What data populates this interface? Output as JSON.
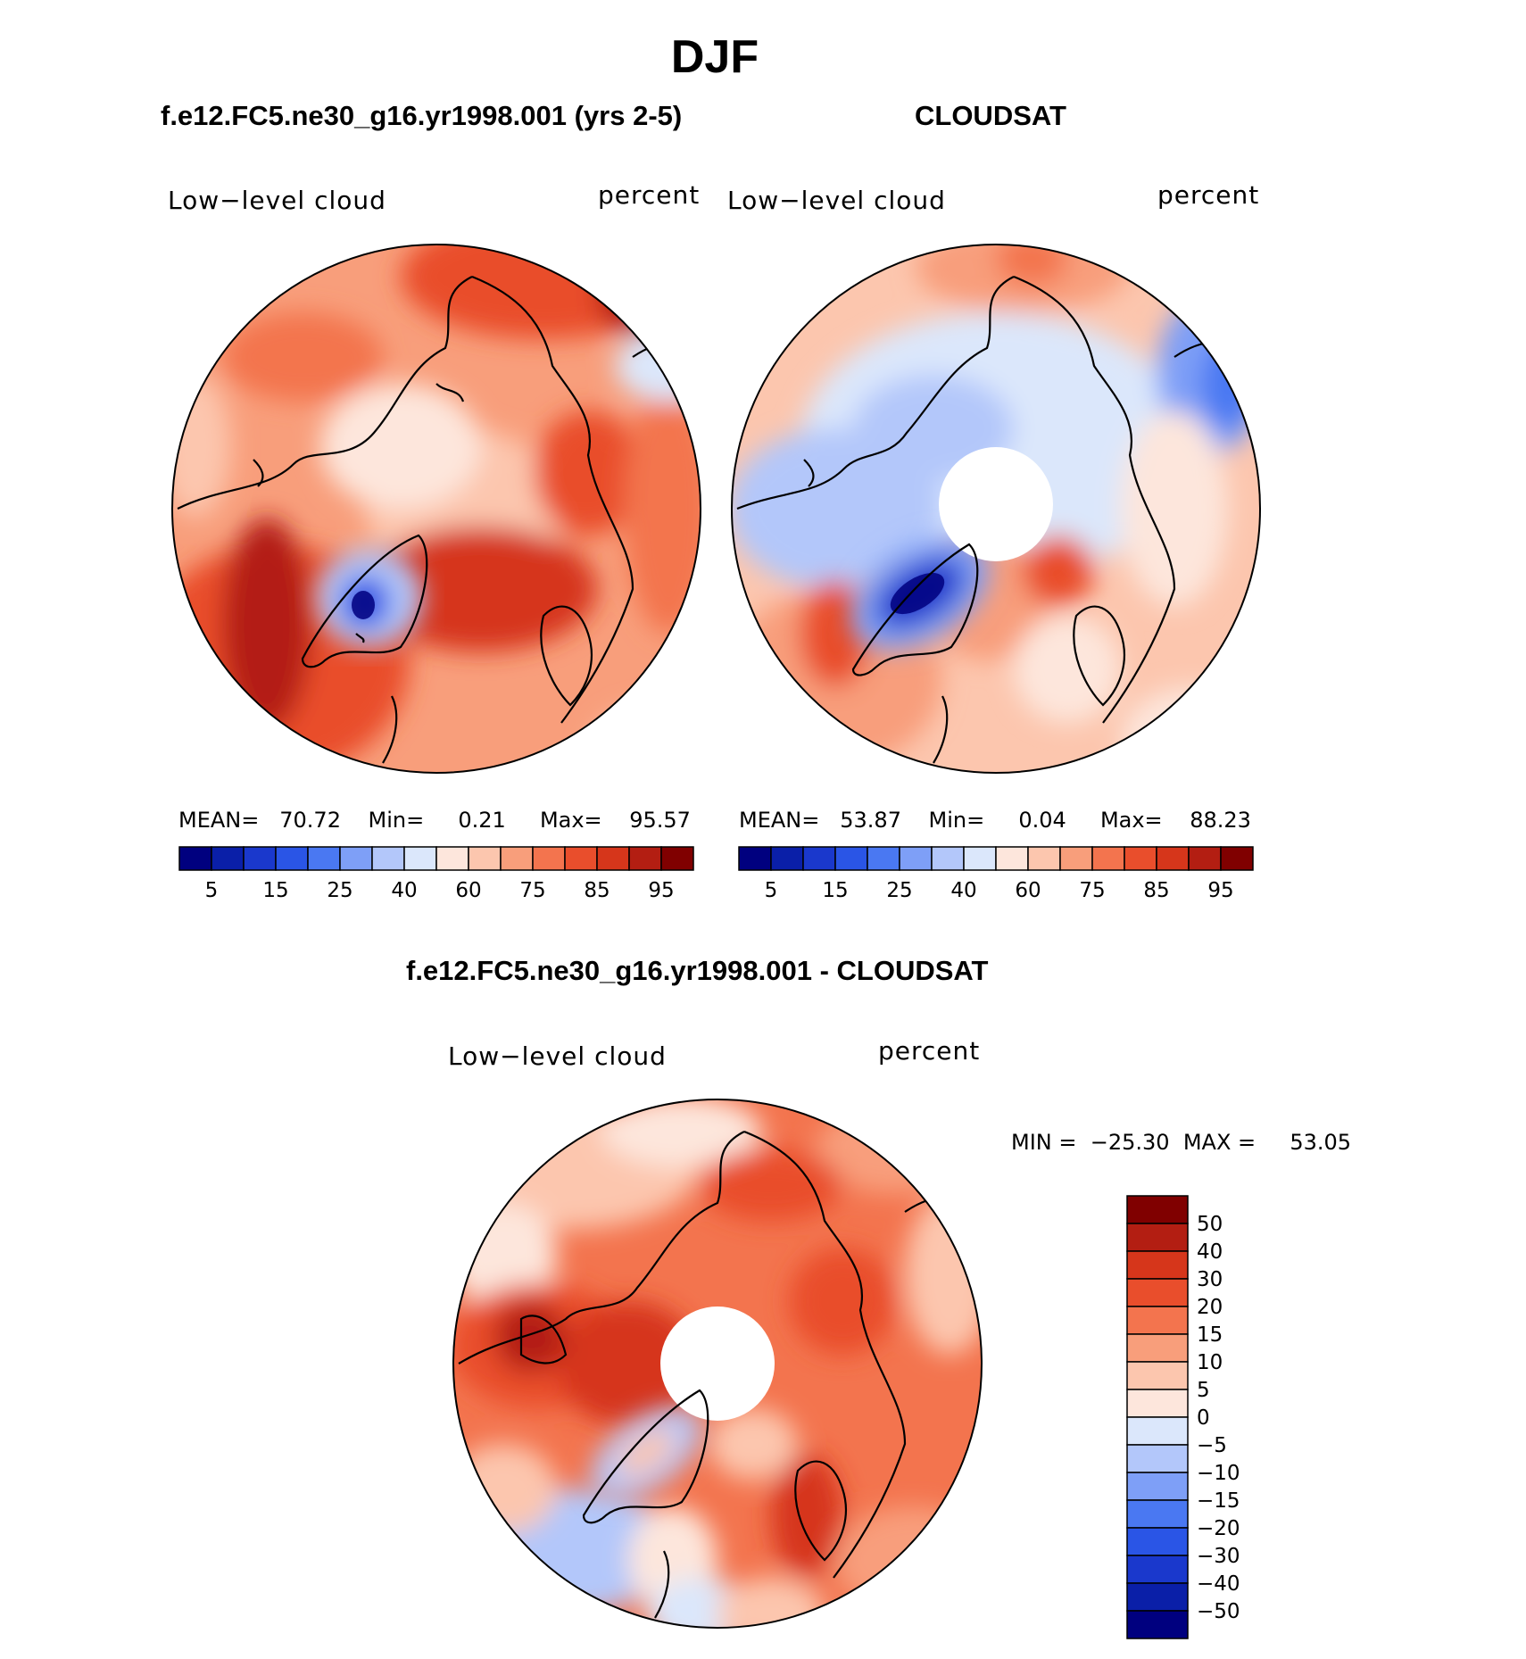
{
  "figure": {
    "title": "DJF"
  },
  "panels": {
    "model": {
      "title": "f.e12.FC5.ne30_g16.yr1998.001 (yrs 2-5)",
      "var_label": "Low−level cloud",
      "unit_label": "percent",
      "stats": {
        "mean_label": "MEAN=",
        "mean": "70.72",
        "min_label": "Min=",
        "min": "0.21",
        "max_label": "Max=",
        "max": "95.57"
      }
    },
    "obs": {
      "title": "CLOUDSAT",
      "var_label": "Low−level cloud",
      "unit_label": "percent",
      "stats": {
        "mean_label": "MEAN=",
        "mean": "53.87",
        "min_label": "Min=",
        "min": "0.04",
        "max_label": "Max=",
        "max": "88.23"
      }
    },
    "diff": {
      "title": "f.e12.FC5.ne30_g16.yr1998.001 - CLOUDSAT",
      "var_label": "Low−level cloud",
      "unit_label": "percent",
      "stats": {
        "min_label": "MIN =",
        "min": "−25.30",
        "max_label": "MAX =",
        "max": "53.05"
      }
    }
  },
  "chart_data": [
    {
      "type": "heatmap",
      "projection": "north polar stereographic",
      "field": "Low-level cloud (percent)",
      "colorbar": {
        "orientation": "horizontal",
        "tick_labels": [
          "5",
          "15",
          "25",
          "40",
          "60",
          "75",
          "85",
          "95"
        ],
        "colors": [
          "#00007f",
          "#0a1fa8",
          "#1a38cc",
          "#2a55e6",
          "#4a78f2",
          "#7e9ff7",
          "#b3c7fa",
          "#dbe7fb",
          "#fde6dc",
          "#fcc6ae",
          "#f89e7b",
          "#f3744e",
          "#e94e2c",
          "#d6361b",
          "#b31e12",
          "#800000"
        ]
      },
      "stats": {
        "mean": 70.72,
        "min": 0.21,
        "max": 95.57
      }
    },
    {
      "type": "heatmap",
      "projection": "north polar stereographic",
      "field": "Low-level cloud (percent)",
      "colorbar": {
        "orientation": "horizontal",
        "tick_labels": [
          "5",
          "15",
          "25",
          "40",
          "60",
          "75",
          "85",
          "95"
        ],
        "colors": [
          "#00007f",
          "#0a1fa8",
          "#1a38cc",
          "#2a55e6",
          "#4a78f2",
          "#7e9ff7",
          "#b3c7fa",
          "#dbe7fb",
          "#fde6dc",
          "#fcc6ae",
          "#f89e7b",
          "#f3744e",
          "#e94e2c",
          "#d6361b",
          "#b31e12",
          "#800000"
        ]
      },
      "stats": {
        "mean": 53.87,
        "min": 0.04,
        "max": 88.23
      }
    },
    {
      "type": "heatmap",
      "projection": "north polar stereographic",
      "field": "Low-level cloud difference (percent)",
      "colorbar": {
        "orientation": "vertical",
        "tick_labels": [
          "50",
          "40",
          "30",
          "20",
          "15",
          "10",
          "5",
          "0",
          "−5",
          "−10",
          "−15",
          "−20",
          "−30",
          "−40",
          "−50"
        ],
        "colors": [
          "#800000",
          "#b31e12",
          "#d6361b",
          "#e94e2c",
          "#f3744e",
          "#f89e7b",
          "#fcc6ae",
          "#fde6dc",
          "#dbe7fb",
          "#b3c7fa",
          "#7e9ff7",
          "#4a78f2",
          "#2a55e6",
          "#1a38cc",
          "#0a1fa8",
          "#00007f"
        ]
      },
      "stats": {
        "min": -25.3,
        "max": 53.05
      }
    }
  ]
}
